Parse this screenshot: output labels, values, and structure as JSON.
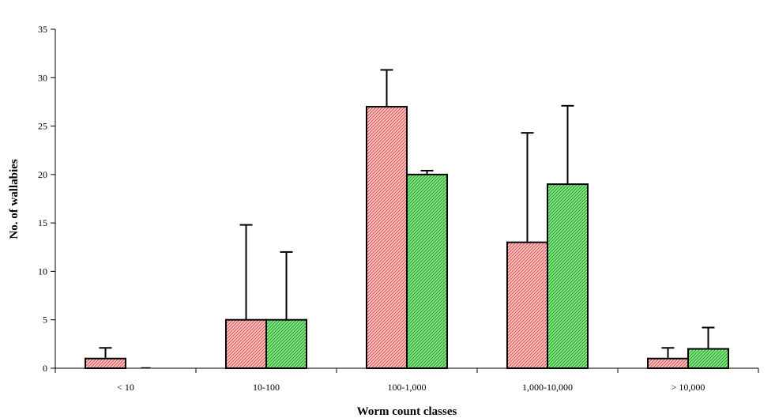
{
  "chart_data": {
    "type": "bar",
    "title": "",
    "xlabel": "Worm count classes",
    "ylabel": "No. of wallabies",
    "categories": [
      "< 10",
      "10-100",
      "100-1,000",
      "1,000-10,000",
      "> 10,000"
    ],
    "series": [
      {
        "values": [
          1,
          5,
          27,
          13,
          1
        ],
        "errors": [
          1.1,
          9.8,
          3.8,
          11.3,
          1.1
        ],
        "color": "#f2b6b6",
        "pattern_color": "#d94b4b"
      },
      {
        "values": [
          0,
          5,
          20,
          19,
          2
        ],
        "errors": [
          0,
          7.0,
          0.4,
          8.1,
          2.2
        ],
        "color": "#7be07b",
        "pattern_color": "#1f9a1f"
      }
    ],
    "ylim": [
      0,
      35
    ],
    "yticks": [
      0,
      5,
      10,
      15,
      20,
      25,
      30,
      35
    ],
    "grid": false,
    "legend": "none"
  }
}
